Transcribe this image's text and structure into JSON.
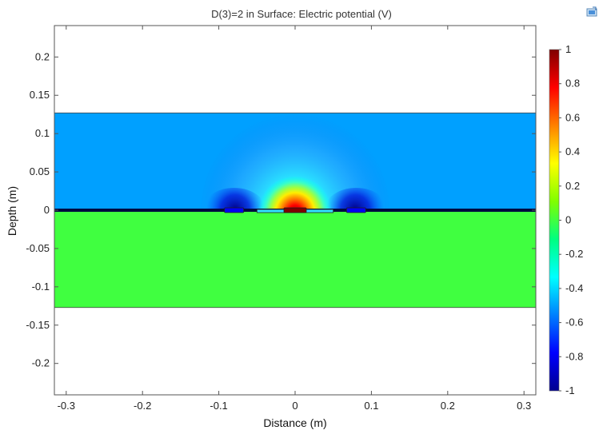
{
  "chart_data": {
    "type": "heatmap",
    "title": "D(3)=2 in   Surface: Electric potential (V)",
    "xlabel": "Distance (m)",
    "ylabel": "Depth (m)",
    "xlim": [
      -0.3155,
      0.3155
    ],
    "ylim": [
      -0.241,
      0.241
    ],
    "x_ticks": [
      "-0.3",
      "-0.2",
      "-0.1",
      "0",
      "0.1",
      "0.2",
      "0.3"
    ],
    "x_tick_values": [
      -0.3,
      -0.2,
      -0.1,
      0,
      0.1,
      0.2,
      0.3
    ],
    "y_ticks": [
      "0.2",
      "0.15",
      "0.1",
      "0.05",
      "0",
      "-0.05",
      "-0.1",
      "-0.15",
      "-0.2"
    ],
    "y_tick_values": [
      0.2,
      0.15,
      0.1,
      0.05,
      0,
      -0.05,
      -0.1,
      -0.15,
      -0.2
    ],
    "regions": [
      {
        "name": "upper-domain",
        "x_range": [
          -0.3155,
          0.3155
        ],
        "y_range": [
          0,
          0.127
        ],
        "background_potential": -0.5
      },
      {
        "name": "lower-domain",
        "x_range": [
          -0.3155,
          0.3155
        ],
        "y_range": [
          -0.127,
          0
        ],
        "background_potential": 0
      }
    ],
    "features": [
      {
        "label": "center electrode",
        "x": 0,
        "y": 0,
        "potential": 1
      },
      {
        "label": "left electrode",
        "x": -0.08,
        "y": 0,
        "potential": -0.8
      },
      {
        "label": "right electrode",
        "x": 0.08,
        "y": 0,
        "potential": -0.8
      }
    ],
    "colorbar": {
      "min": -1,
      "max": 1,
      "ticks": [
        "1",
        "0.8",
        "0.6",
        "0.4",
        "0.2",
        "0",
        "-0.2",
        "-0.4",
        "-0.6",
        "-0.8",
        "-1"
      ],
      "tick_values": [
        1,
        0.8,
        0.6,
        0.4,
        0.2,
        0,
        -0.2,
        -0.4,
        -0.6,
        -0.8,
        -1
      ],
      "colors": [
        "#00008f",
        "#0000ff",
        "#0080ff",
        "#00ffff",
        "#00ff80",
        "#80ff00",
        "#ffff00",
        "#ff8000",
        "#ff0000",
        "#800000"
      ]
    }
  }
}
